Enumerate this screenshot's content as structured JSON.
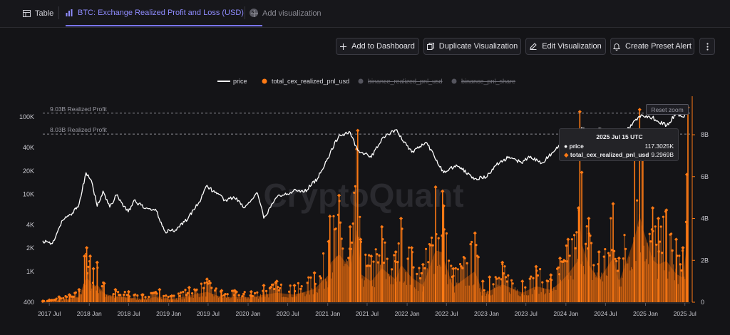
{
  "tabs": {
    "table_label": "Table",
    "viz_label": "BTC: Exchange Realized Profit and Loss (USD)",
    "add_label": "Add visualization"
  },
  "toolbar": {
    "add_dashboard": "Add to Dashboard",
    "duplicate": "Duplicate Visualization",
    "edit": "Edit Visualization",
    "alert": "Create Preset Alert"
  },
  "legend": {
    "price": "price",
    "total": "total_cex_realized_pnl_usd",
    "binance_pnl": "binance_realized_pnl_usd",
    "binance_share": "binance_pnl_share"
  },
  "reset_zoom": "Reset zoom",
  "watermark": "CryptoQuant",
  "tooltip": {
    "title": "2025 Jul 15 UTC",
    "price_label": "price",
    "price_value": "117.3025K",
    "total_label": "total_cex_realized_pnl_usd",
    "total_value": "9.2969B"
  },
  "colors": {
    "price": "#ffffff",
    "total": "#ff7a14",
    "inactive": "#55555e",
    "accent": "#7a76ff"
  },
  "chart_data": {
    "type": "line",
    "title": "",
    "xlabel": "",
    "ylabel": "",
    "x_ticks": [
      "2017 Jul",
      "2018 Jan",
      "2018 Jul",
      "2019 Jan",
      "2019 Jul",
      "2020 Jan",
      "2020 Jul",
      "2021 Jan",
      "2021 Jul",
      "2022 Jan",
      "2022 Jul",
      "2023 Jan",
      "2023 Jul",
      "2024 Jan",
      "2024 Jul",
      "2025 Jan",
      "2025 Jul"
    ],
    "y_left": {
      "scale": "log",
      "ticks": [
        "400",
        "1K",
        "2K",
        "4K",
        "10K",
        "20K",
        "40K",
        "100K"
      ],
      "range": [
        400,
        150000
      ]
    },
    "y_right": {
      "scale": "linear",
      "ticks": [
        "0",
        "2B",
        "4B",
        "6B",
        "8B"
      ],
      "range": [
        0,
        9.5
      ]
    },
    "annotations": [
      {
        "label": "9.03B Realized Profit",
        "value": 9.03
      },
      {
        "label": "8.03B Realized Profit",
        "value": 8.03
      }
    ],
    "series": [
      {
        "name": "price",
        "axis": "left",
        "points": [
          [
            "2017-06-01",
            2500
          ],
          [
            "2017-07-15",
            2300
          ],
          [
            "2017-09-01",
            4600
          ],
          [
            "2017-10-15",
            5700
          ],
          [
            "2017-11-15",
            7500
          ],
          [
            "2017-12-17",
            19000
          ],
          [
            "2018-01-15",
            13500
          ],
          [
            "2018-02-06",
            7000
          ],
          [
            "2018-03-05",
            11000
          ],
          [
            "2018-04-05",
            6800
          ],
          [
            "2018-05-05",
            9700
          ],
          [
            "2018-06-29",
            5900
          ],
          [
            "2018-07-25",
            8300
          ],
          [
            "2018-09-15",
            6500
          ],
          [
            "2018-11-01",
            6400
          ],
          [
            "2018-12-15",
            3300
          ],
          [
            "2019-02-01",
            3450
          ],
          [
            "2019-04-02",
            5000
          ],
          [
            "2019-05-30",
            8700
          ],
          [
            "2019-06-26",
            13000
          ],
          [
            "2019-08-01",
            10500
          ],
          [
            "2019-09-25",
            8100
          ],
          [
            "2019-10-26",
            9300
          ],
          [
            "2019-12-17",
            6700
          ],
          [
            "2020-02-13",
            10300
          ],
          [
            "2020-03-13",
            4900
          ],
          [
            "2020-05-15",
            9400
          ],
          [
            "2020-07-27",
            11000
          ],
          [
            "2020-09-15",
            10700
          ],
          [
            "2020-11-15",
            16000
          ],
          [
            "2020-12-31",
            29000
          ],
          [
            "2021-02-21",
            57000
          ],
          [
            "2021-04-14",
            63500
          ],
          [
            "2021-05-19",
            37000
          ],
          [
            "2021-07-20",
            30000
          ],
          [
            "2021-09-06",
            52000
          ],
          [
            "2021-11-10",
            68000
          ],
          [
            "2022-01-22",
            35000
          ],
          [
            "2022-03-29",
            47000
          ],
          [
            "2022-06-18",
            19000
          ],
          [
            "2022-08-15",
            24000
          ],
          [
            "2022-11-09",
            16000
          ],
          [
            "2022-12-30",
            16500
          ],
          [
            "2023-02-15",
            24000
          ],
          [
            "2023-04-14",
            30500
          ],
          [
            "2023-06-15",
            25000
          ],
          [
            "2023-07-14",
            31000
          ],
          [
            "2023-09-11",
            25200
          ],
          [
            "2023-12-08",
            43500
          ],
          [
            "2024-01-23",
            39000
          ],
          [
            "2024-03-14",
            73000
          ],
          [
            "2024-05-01",
            57000
          ],
          [
            "2024-06-05",
            71000
          ],
          [
            "2024-08-05",
            54000
          ],
          [
            "2024-09-06",
            53000
          ],
          [
            "2024-11-13",
            90000
          ],
          [
            "2024-12-17",
            106000
          ],
          [
            "2025-02-01",
            98000
          ],
          [
            "2025-04-08",
            77000
          ],
          [
            "2025-05-22",
            111000
          ],
          [
            "2025-06-22",
            100000
          ],
          [
            "2025-07-15",
            117300
          ]
        ]
      },
      {
        "name": "total_cex_realized_pnl_usd",
        "axis": "right",
        "unit": "B",
        "points": [
          [
            "2017-06-01",
            0.05
          ],
          [
            "2017-07-01",
            0.1
          ],
          [
            "2017-08-15",
            0.25
          ],
          [
            "2017-10-01",
            0.35
          ],
          [
            "2017-11-15",
            0.6
          ],
          [
            "2017-12-10",
            2.2
          ],
          [
            "2017-12-20",
            2.6
          ],
          [
            "2018-01-05",
            2.2
          ],
          [
            "2018-01-20",
            1.6
          ],
          [
            "2018-02-06",
            1.9
          ],
          [
            "2018-03-10",
            0.9
          ],
          [
            "2018-05-01",
            0.6
          ],
          [
            "2018-07-01",
            0.5
          ],
          [
            "2018-09-01",
            0.35
          ],
          [
            "2018-11-20",
            0.6
          ],
          [
            "2019-01-15",
            0.3
          ],
          [
            "2019-04-05",
            0.7
          ],
          [
            "2019-06-26",
            1.1
          ],
          [
            "2019-09-01",
            0.55
          ],
          [
            "2019-11-01",
            0.55
          ],
          [
            "2020-01-15",
            0.5
          ],
          [
            "2020-03-13",
            0.8
          ],
          [
            "2020-05-12",
            1.0
          ],
          [
            "2020-08-01",
            0.8
          ],
          [
            "2020-11-01",
            1.4
          ],
          [
            "2021-01-05",
            2.9
          ],
          [
            "2021-01-11",
            4.1
          ],
          [
            "2021-02-22",
            5.1
          ],
          [
            "2021-04-14",
            3.6
          ],
          [
            "2021-05-19",
            8.2
          ],
          [
            "2021-06-01",
            3.0
          ],
          [
            "2021-07-20",
            2.2
          ],
          [
            "2021-09-07",
            3.6
          ],
          [
            "2021-11-10",
            2.4
          ],
          [
            "2021-12-04",
            4.0
          ],
          [
            "2022-01-22",
            2.6
          ],
          [
            "2022-03-15",
            1.8
          ],
          [
            "2022-05-12",
            5.5
          ],
          [
            "2022-06-13",
            5.3
          ],
          [
            "2022-06-18",
            4.6
          ],
          [
            "2022-08-01",
            1.6
          ],
          [
            "2022-11-09",
            3.3
          ],
          [
            "2022-12-15",
            1.0
          ],
          [
            "2023-01-15",
            1.2
          ],
          [
            "2023-03-15",
            1.9
          ],
          [
            "2023-06-15",
            1.0
          ],
          [
            "2023-08-17",
            1.7
          ],
          [
            "2023-10-24",
            1.3
          ],
          [
            "2023-12-05",
            2.1
          ],
          [
            "2024-01-11",
            3.0
          ],
          [
            "2024-02-28",
            4.5
          ],
          [
            "2024-03-05",
            9.1
          ],
          [
            "2024-03-14",
            6.2
          ],
          [
            "2024-04-15",
            4.0
          ],
          [
            "2024-06-01",
            2.4
          ],
          [
            "2024-08-05",
            4.7
          ],
          [
            "2024-09-01",
            2.1
          ],
          [
            "2024-11-12",
            6.8
          ],
          [
            "2024-12-05",
            9.2
          ],
          [
            "2024-12-20",
            7.8
          ],
          [
            "2025-02-03",
            4.5
          ],
          [
            "2025-03-01",
            4.0
          ],
          [
            "2025-04-07",
            4.4
          ],
          [
            "2025-05-22",
            3.0
          ],
          [
            "2025-06-22",
            2.6
          ],
          [
            "2025-07-10",
            6.1
          ],
          [
            "2025-07-15",
            9.3
          ]
        ]
      },
      {
        "name": "binance_realized_pnl_usd",
        "visible": false,
        "points": []
      },
      {
        "name": "binance_pnl_share",
        "visible": false,
        "points": []
      }
    ]
  }
}
